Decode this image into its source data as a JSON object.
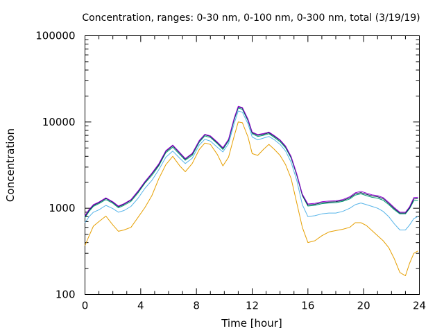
{
  "chart_data": {
    "type": "line",
    "title": "Concentration, ranges: 0-30 nm, 0-100 nm, 0-300 nm, total (3/19/19)",
    "xlabel": "Time [hour]",
    "ylabel": "Concentration",
    "xlim": [
      0,
      24
    ],
    "ylim": [
      100,
      100000
    ],
    "yscale": "log",
    "grid": false,
    "legend": "none",
    "xticks": [
      0,
      4,
      8,
      12,
      16,
      20,
      24
    ],
    "xtick_labels": [
      "0",
      "4",
      "8",
      "12",
      "16",
      "20",
      "24"
    ],
    "yticks": [
      100,
      1000,
      10000,
      100000
    ],
    "ytick_labels": [
      "100",
      "1000",
      "10000",
      "100000"
    ],
    "series": [
      {
        "color": "#e69f00",
        "x": [
          0,
          0.3,
          0.6,
          1.0,
          1.5,
          2.0,
          2.4,
          2.8,
          3.3,
          3.8,
          4.3,
          4.8,
          5.3,
          5.8,
          6.3,
          6.8,
          7.2,
          7.7,
          8.2,
          8.6,
          9.0,
          9.5,
          9.9,
          10.3,
          10.7,
          11.0,
          11.3,
          11.7,
          12.0,
          12.4,
          12.8,
          13.2,
          13.6,
          14.0,
          14.4,
          14.8,
          15.2,
          15.6,
          16.0,
          16.5,
          17.0,
          17.5,
          18.0,
          18.5,
          19.0,
          19.4,
          19.8,
          20.2,
          20.6,
          21.0,
          21.4,
          21.8,
          22.2,
          22.6,
          23.0,
          23.3,
          23.6,
          23.9
        ],
        "y": [
          370,
          480,
          620,
          700,
          810,
          640,
          540,
          560,
          600,
          780,
          1020,
          1400,
          2200,
          3200,
          4000,
          3100,
          2650,
          3300,
          4800,
          5700,
          5500,
          4200,
          3100,
          3900,
          6800,
          10000,
          9800,
          6700,
          4300,
          4100,
          4800,
          5500,
          4800,
          4100,
          3200,
          2200,
          1150,
          600,
          400,
          420,
          480,
          530,
          550,
          570,
          600,
          680,
          680,
          630,
          550,
          480,
          420,
          350,
          260,
          180,
          165,
          230,
          300,
          320
        ]
      },
      {
        "color": "#56b4e9",
        "x": [
          0,
          0.3,
          0.6,
          1.0,
          1.5,
          2.0,
          2.4,
          2.8,
          3.3,
          3.8,
          4.3,
          4.8,
          5.3,
          5.8,
          6.3,
          6.8,
          7.2,
          7.7,
          8.2,
          8.6,
          9.0,
          9.5,
          9.9,
          10.3,
          10.7,
          11.0,
          11.3,
          11.7,
          12.0,
          12.4,
          12.8,
          13.2,
          13.6,
          14.0,
          14.4,
          14.8,
          15.2,
          15.6,
          16.0,
          16.5,
          17.0,
          17.5,
          18.0,
          18.5,
          19.0,
          19.4,
          19.8,
          20.2,
          20.6,
          21.0,
          21.4,
          21.8,
          22.2,
          22.6,
          23.0,
          23.3,
          23.6,
          23.9
        ],
        "y": [
          680,
          800,
          900,
          960,
          1080,
          990,
          900,
          940,
          1050,
          1300,
          1700,
          2100,
          2800,
          3900,
          4600,
          3800,
          3300,
          3800,
          5400,
          6300,
          6000,
          5100,
          4500,
          5600,
          9500,
          13400,
          13000,
          9500,
          6700,
          6200,
          6500,
          6800,
          6200,
          5500,
          4600,
          3400,
          2100,
          1100,
          800,
          820,
          860,
          880,
          880,
          920,
          1000,
          1100,
          1150,
          1100,
          1050,
          1000,
          920,
          800,
          660,
          560,
          560,
          640,
          760,
          800
        ]
      },
      {
        "color": "#009e73",
        "x": [
          0,
          0.3,
          0.6,
          1.0,
          1.5,
          2.0,
          2.4,
          2.8,
          3.3,
          3.8,
          4.3,
          4.8,
          5.3,
          5.8,
          6.3,
          6.8,
          7.2,
          7.7,
          8.2,
          8.6,
          9.0,
          9.5,
          9.9,
          10.3,
          10.7,
          11.0,
          11.3,
          11.7,
          12.0,
          12.4,
          12.8,
          13.2,
          13.6,
          14.0,
          14.4,
          14.8,
          15.2,
          15.6,
          16.0,
          16.5,
          17.0,
          17.5,
          18.0,
          18.5,
          19.0,
          19.4,
          19.8,
          20.2,
          20.6,
          21.0,
          21.4,
          21.8,
          22.2,
          22.6,
          23.0,
          23.3,
          23.6,
          23.9
        ],
        "y": [
          780,
          920,
          1050,
          1130,
          1260,
          1140,
          1010,
          1080,
          1200,
          1500,
          1950,
          2400,
          3100,
          4400,
          5100,
          4200,
          3600,
          4100,
          5800,
          6900,
          6600,
          5600,
          4800,
          6000,
          10500,
          14500,
          14000,
          10300,
          7300,
          6800,
          7000,
          7300,
          6600,
          5900,
          5000,
          3800,
          2400,
          1400,
          1060,
          1080,
          1130,
          1150,
          1160,
          1200,
          1280,
          1420,
          1470,
          1400,
          1340,
          1310,
          1240,
          1100,
          960,
          860,
          860,
          990,
          1220,
          1240
        ]
      },
      {
        "color": "#0b2050",
        "x": [
          0,
          0.3,
          0.6,
          1.0,
          1.5,
          2.0,
          2.4,
          2.8,
          3.3,
          3.8,
          4.3,
          4.8,
          5.3,
          5.8,
          6.3,
          6.8,
          7.2,
          7.7,
          8.2,
          8.6,
          9.0,
          9.5,
          9.9,
          10.3,
          10.7,
          11.0,
          11.3,
          11.7,
          12.0,
          12.4,
          12.8,
          13.2,
          13.6,
          14.0,
          14.4,
          14.8,
          15.2,
          15.6,
          16.0,
          16.5,
          17.0,
          17.5,
          18.0,
          18.5,
          19.0,
          19.4,
          19.8,
          20.2,
          20.6,
          21.0,
          21.4,
          21.8,
          22.2,
          22.6,
          23.0,
          23.3,
          23.6,
          23.9
        ],
        "y": [
          800,
          950,
          1080,
          1160,
          1300,
          1170,
          1040,
          1110,
          1240,
          1550,
          2000,
          2500,
          3200,
          4550,
          5300,
          4350,
          3700,
          4250,
          6000,
          7100,
          6800,
          5750,
          4950,
          6200,
          10800,
          14900,
          14400,
          10600,
          7500,
          7000,
          7200,
          7500,
          6800,
          6100,
          5150,
          3900,
          2450,
          1430,
          1090,
          1110,
          1160,
          1180,
          1190,
          1230,
          1320,
          1470,
          1520,
          1450,
          1390,
          1360,
          1290,
          1140,
          990,
          880,
          880,
          1010,
          1280,
          1290
        ]
      },
      {
        "color": "#9400d3",
        "x": [
          0,
          0.3,
          0.6,
          1.0,
          1.5,
          2.0,
          2.4,
          2.8,
          3.3,
          3.8,
          4.3,
          4.8,
          5.3,
          5.8,
          6.3,
          6.8,
          7.2,
          7.7,
          8.2,
          8.6,
          9.0,
          9.5,
          9.9,
          10.3,
          10.7,
          11.0,
          11.3,
          11.7,
          12.0,
          12.4,
          12.8,
          13.2,
          13.6,
          14.0,
          14.4,
          14.8,
          15.2,
          15.6,
          16.0,
          16.5,
          17.0,
          17.5,
          18.0,
          18.5,
          19.0,
          19.4,
          19.8,
          20.2,
          20.6,
          21.0,
          21.4,
          21.8,
          22.2,
          22.6,
          23.0,
          23.3,
          23.6,
          23.9
        ],
        "y": [
          820,
          970,
          1100,
          1180,
          1320,
          1190,
          1060,
          1130,
          1260,
          1580,
          2040,
          2550,
          3280,
          4650,
          5400,
          4430,
          3770,
          4330,
          6100,
          7200,
          6900,
          5850,
          5040,
          6300,
          11000,
          15200,
          14700,
          10800,
          7650,
          7150,
          7350,
          7650,
          6950,
          6200,
          5250,
          3980,
          2500,
          1460,
          1120,
          1140,
          1190,
          1210,
          1220,
          1260,
          1360,
          1510,
          1570,
          1500,
          1430,
          1400,
          1330,
          1170,
          1020,
          900,
          900,
          1040,
          1330,
          1340
        ]
      }
    ]
  }
}
